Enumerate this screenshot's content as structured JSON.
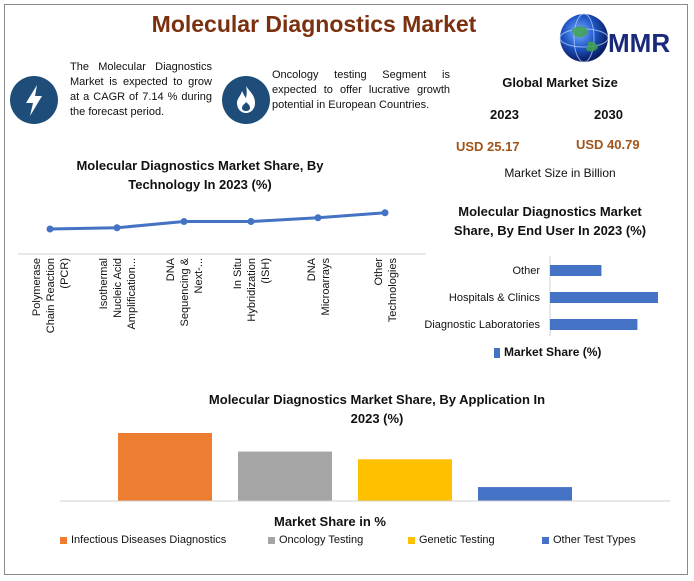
{
  "header": {
    "title": "Molecular Diagnostics Market",
    "logo_text": "MMR"
  },
  "info": [
    {
      "icon": "lightning-bolt-icon",
      "text": "The Molecular Diagnostics Market is expected to grow at a CAGR of 7.14 % during the forecast period."
    },
    {
      "icon": "flame-icon",
      "text": "Oncology testing Segment is expected to offer lucrative growth potential in European Countries."
    }
  ],
  "market_size": {
    "title": "Global Market Size",
    "year_start": "2023",
    "year_end": "2030",
    "value_start": "USD 25.17",
    "value_end": "USD 40.79",
    "unit": "Market Size in Billion"
  },
  "colors": {
    "line": "#4472c4",
    "bar_user": "#4472c4",
    "orange": "#ed7d31",
    "gray": "#a5a5a5",
    "gold": "#ffc000",
    "blue": "#4472c4",
    "title_brown": "#7b3010",
    "usd_brown": "#a1541a",
    "icon_navy": "#1f4d7a"
  },
  "chart_data": [
    {
      "type": "line",
      "title": "Molecular Diagnostics Market Share, By Technology In 2023 (%)",
      "categories": [
        [
          "Polymerase",
          "Chain Reaction",
          "(PCR)"
        ],
        [
          "Isothermal",
          "Nucleic Acid",
          "Amplification..."
        ],
        [
          "DNA",
          "Sequencing &",
          "Next-..."
        ],
        [
          "In Situ",
          "Hybridization",
          "(ISH)"
        ],
        [
          "DNA",
          "Microarrays"
        ],
        [
          "Other",
          "Technologies"
        ]
      ],
      "values": [
        10,
        11,
        16,
        16,
        19,
        23
      ],
      "ylim": [
        0,
        100
      ],
      "grid": false
    },
    {
      "type": "bar",
      "orientation": "horizontal",
      "title": "Molecular Diagnostics Market Share, By End User In 2023 (%)",
      "categories": [
        "Other",
        "Hospitals & Clinics",
        "Diagnostic Laboratories"
      ],
      "series": [
        {
          "name": "Market Share (%)",
          "values": [
            20,
            42,
            34
          ]
        }
      ],
      "xlim": [
        0,
        42
      ],
      "legend": "bottom"
    },
    {
      "type": "bar",
      "title": "Molecular Diagnostics Market Share, By Application In 2023 (%)",
      "xlabel": "Market Share in %",
      "categories": [
        "Infectious Diseases Diagnostics",
        "Oncology Testing",
        "Genetic Testing",
        "Other Test Types"
      ],
      "values": [
        44,
        32,
        27,
        9
      ],
      "ylim": [
        0,
        44
      ],
      "legend": "bottom"
    }
  ]
}
